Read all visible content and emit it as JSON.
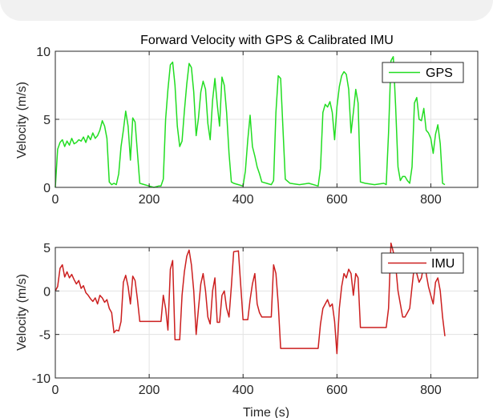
{
  "chart_data": [
    {
      "type": "line",
      "title": "Forward Velocity with GPS & Calibrated IMU",
      "xlabel": "",
      "ylabel": "Velocity (m/s)",
      "xlim": [
        0,
        900
      ],
      "ylim": [
        0,
        10
      ],
      "xticks": [
        0,
        200,
        400,
        600,
        800
      ],
      "yticks": [
        0,
        5,
        10
      ],
      "grid": true,
      "legend_position": "top-right",
      "series": [
        {
          "name": "GPS",
          "color": "#22dd22",
          "x": [
            0,
            5,
            10,
            15,
            20,
            25,
            30,
            35,
            40,
            45,
            50,
            55,
            60,
            65,
            70,
            75,
            80,
            85,
            90,
            95,
            100,
            105,
            110,
            115,
            120,
            125,
            130,
            135,
            140,
            145,
            150,
            155,
            160,
            165,
            170,
            175,
            180,
            190,
            200,
            210,
            220,
            225,
            230,
            235,
            240,
            245,
            250,
            255,
            260,
            265,
            270,
            275,
            280,
            285,
            290,
            295,
            300,
            305,
            310,
            315,
            320,
            325,
            330,
            335,
            340,
            345,
            350,
            355,
            360,
            365,
            370,
            375,
            380,
            390,
            400,
            405,
            410,
            415,
            420,
            425,
            430,
            435,
            440,
            450,
            460,
            465,
            470,
            475,
            480,
            490,
            500,
            520,
            540,
            560,
            565,
            570,
            575,
            580,
            585,
            590,
            595,
            600,
            605,
            610,
            615,
            620,
            625,
            630,
            635,
            640,
            645,
            650,
            660,
            680,
            700,
            705,
            710,
            715,
            720,
            725,
            730,
            735,
            740,
            745,
            750,
            755,
            760,
            765,
            770,
            775,
            780,
            785,
            790,
            795,
            800,
            805,
            810,
            815,
            820,
            825,
            830
          ],
          "values": [
            0,
            2.8,
            3.3,
            3.5,
            3.0,
            3.4,
            3.1,
            3.6,
            3.2,
            3.3,
            3.5,
            3.4,
            3.7,
            3.3,
            3.8,
            3.5,
            4.0,
            3.6,
            3.8,
            4.2,
            4.9,
            4.5,
            3.6,
            0.4,
            0.2,
            0.3,
            0.2,
            1.0,
            3.0,
            4.2,
            5.6,
            4.5,
            2.0,
            5.1,
            4.8,
            2.5,
            0.3,
            0.2,
            0.1,
            0.0,
            0.1,
            0.1,
            0.6,
            5.0,
            7.2,
            9.0,
            9.2,
            7.5,
            4.5,
            3.0,
            3.4,
            5.6,
            7.6,
            9.1,
            8.8,
            7.0,
            3.8,
            5.1,
            7.0,
            7.8,
            7.2,
            4.7,
            3.5,
            6.4,
            8.0,
            6.1,
            4.5,
            8.1,
            7.5,
            5.5,
            2.5,
            0.4,
            0.3,
            0.2,
            0.1,
            1.2,
            3.5,
            5.3,
            3.0,
            2.3,
            1.5,
            1.0,
            0.4,
            0.3,
            0.2,
            0.5,
            5.5,
            8.2,
            8.0,
            0.6,
            0.3,
            0.2,
            0.3,
            0.1,
            1.4,
            5.5,
            6.1,
            5.9,
            6.3,
            5.5,
            3.5,
            5.9,
            7.4,
            8.2,
            8.5,
            8.3,
            7.2,
            4.0,
            5.5,
            7.2,
            6.2,
            0.4,
            0.3,
            0.2,
            0.3,
            0.2,
            4.0,
            9.3,
            9.6,
            6.0,
            1.5,
            0.5,
            0.8,
            0.8,
            0.5,
            0.3,
            1.5,
            6.2,
            6.6,
            5.0,
            4.9,
            5.8,
            4.2,
            4.0,
            3.6,
            2.5,
            3.9,
            4.6,
            3.2,
            0.3,
            0.2
          ]
        }
      ]
    },
    {
      "type": "line",
      "title": "",
      "xlabel": "Time (s)",
      "ylabel": "Velocity (m/s)",
      "xlim": [
        0,
        900
      ],
      "ylim": [
        -10,
        5
      ],
      "xticks": [
        0,
        200,
        400,
        600,
        800
      ],
      "yticks": [
        -10,
        -5,
        0,
        5
      ],
      "grid": true,
      "legend_position": "top-right",
      "series": [
        {
          "name": "IMU",
          "color": "#cc1f1f",
          "x": [
            0,
            5,
            10,
            15,
            20,
            25,
            30,
            35,
            40,
            45,
            50,
            55,
            60,
            65,
            70,
            75,
            80,
            85,
            90,
            95,
            100,
            105,
            110,
            115,
            120,
            125,
            130,
            135,
            140,
            145,
            150,
            155,
            160,
            165,
            170,
            175,
            180,
            190,
            200,
            210,
            220,
            225,
            230,
            235,
            240,
            245,
            250,
            255,
            260,
            265,
            270,
            275,
            280,
            285,
            290,
            295,
            300,
            305,
            310,
            315,
            320,
            325,
            330,
            335,
            340,
            345,
            350,
            355,
            360,
            365,
            370,
            375,
            380,
            390,
            400,
            405,
            410,
            415,
            420,
            425,
            430,
            435,
            440,
            450,
            460,
            465,
            470,
            475,
            480,
            490,
            500,
            520,
            540,
            560,
            565,
            570,
            575,
            580,
            585,
            590,
            595,
            600,
            605,
            610,
            615,
            620,
            625,
            630,
            635,
            640,
            645,
            650,
            660,
            680,
            700,
            705,
            710,
            715,
            720,
            725,
            730,
            735,
            740,
            745,
            750,
            755,
            760,
            765,
            770,
            775,
            780,
            785,
            790,
            795,
            800,
            805,
            810,
            815,
            820,
            825,
            830
          ],
          "values": [
            0,
            0.5,
            2.6,
            3.0,
            1.6,
            2.2,
            1.5,
            1.9,
            1.3,
            0.8,
            1.2,
            0.3,
            0.6,
            -0.2,
            -0.5,
            -0.9,
            -1.2,
            -0.8,
            -1.5,
            -0.5,
            -0.8,
            -1.3,
            -1.0,
            -2.0,
            -2.5,
            -4.8,
            -4.5,
            -4.6,
            -3.5,
            1.0,
            1.8,
            0.5,
            -1.5,
            1.7,
            1.2,
            -1.0,
            -3.5,
            -3.5,
            -3.5,
            -3.5,
            -3.5,
            -3.5,
            -0.5,
            -2.0,
            -4.5,
            2.5,
            3.5,
            -5.6,
            -5.6,
            -5.6,
            -0.5,
            2.2,
            4.0,
            4.7,
            3.0,
            0.0,
            -5.0,
            -2.0,
            0.8,
            2.0,
            0.0,
            -3.0,
            -3.8,
            0.0,
            1.5,
            -3.6,
            -3.6,
            -0.5,
            0.0,
            -2.0,
            -3.0,
            0.5,
            4.5,
            4.6,
            -3.3,
            -3.3,
            -3.3,
            -1.0,
            0.8,
            2.0,
            -1.5,
            -2.5,
            -3.0,
            -3.0,
            -3.0,
            3.0,
            2.0,
            -1.5,
            -6.6,
            -6.6,
            -6.6,
            -6.6,
            -6.6,
            -6.6,
            -3.8,
            -2.0,
            -1.5,
            -1.0,
            -1.8,
            -1.5,
            -3.5,
            -7.2,
            -2.0,
            0.5,
            2.0,
            1.5,
            2.5,
            2.0,
            -0.5,
            2.0,
            1.5,
            -4.2,
            -4.2,
            -4.2,
            -4.2,
            -4.2,
            -2.0,
            5.5,
            4.5,
            3.0,
            0.0,
            -1.5,
            -3.0,
            -3.0,
            -2.5,
            -2.0,
            0.5,
            3.0,
            2.0,
            1.0,
            1.5,
            3.0,
            2.0,
            0.5,
            -0.5,
            -1.5,
            1.0,
            1.5,
            0.0,
            -3.0,
            -5.2
          ]
        }
      ]
    }
  ]
}
